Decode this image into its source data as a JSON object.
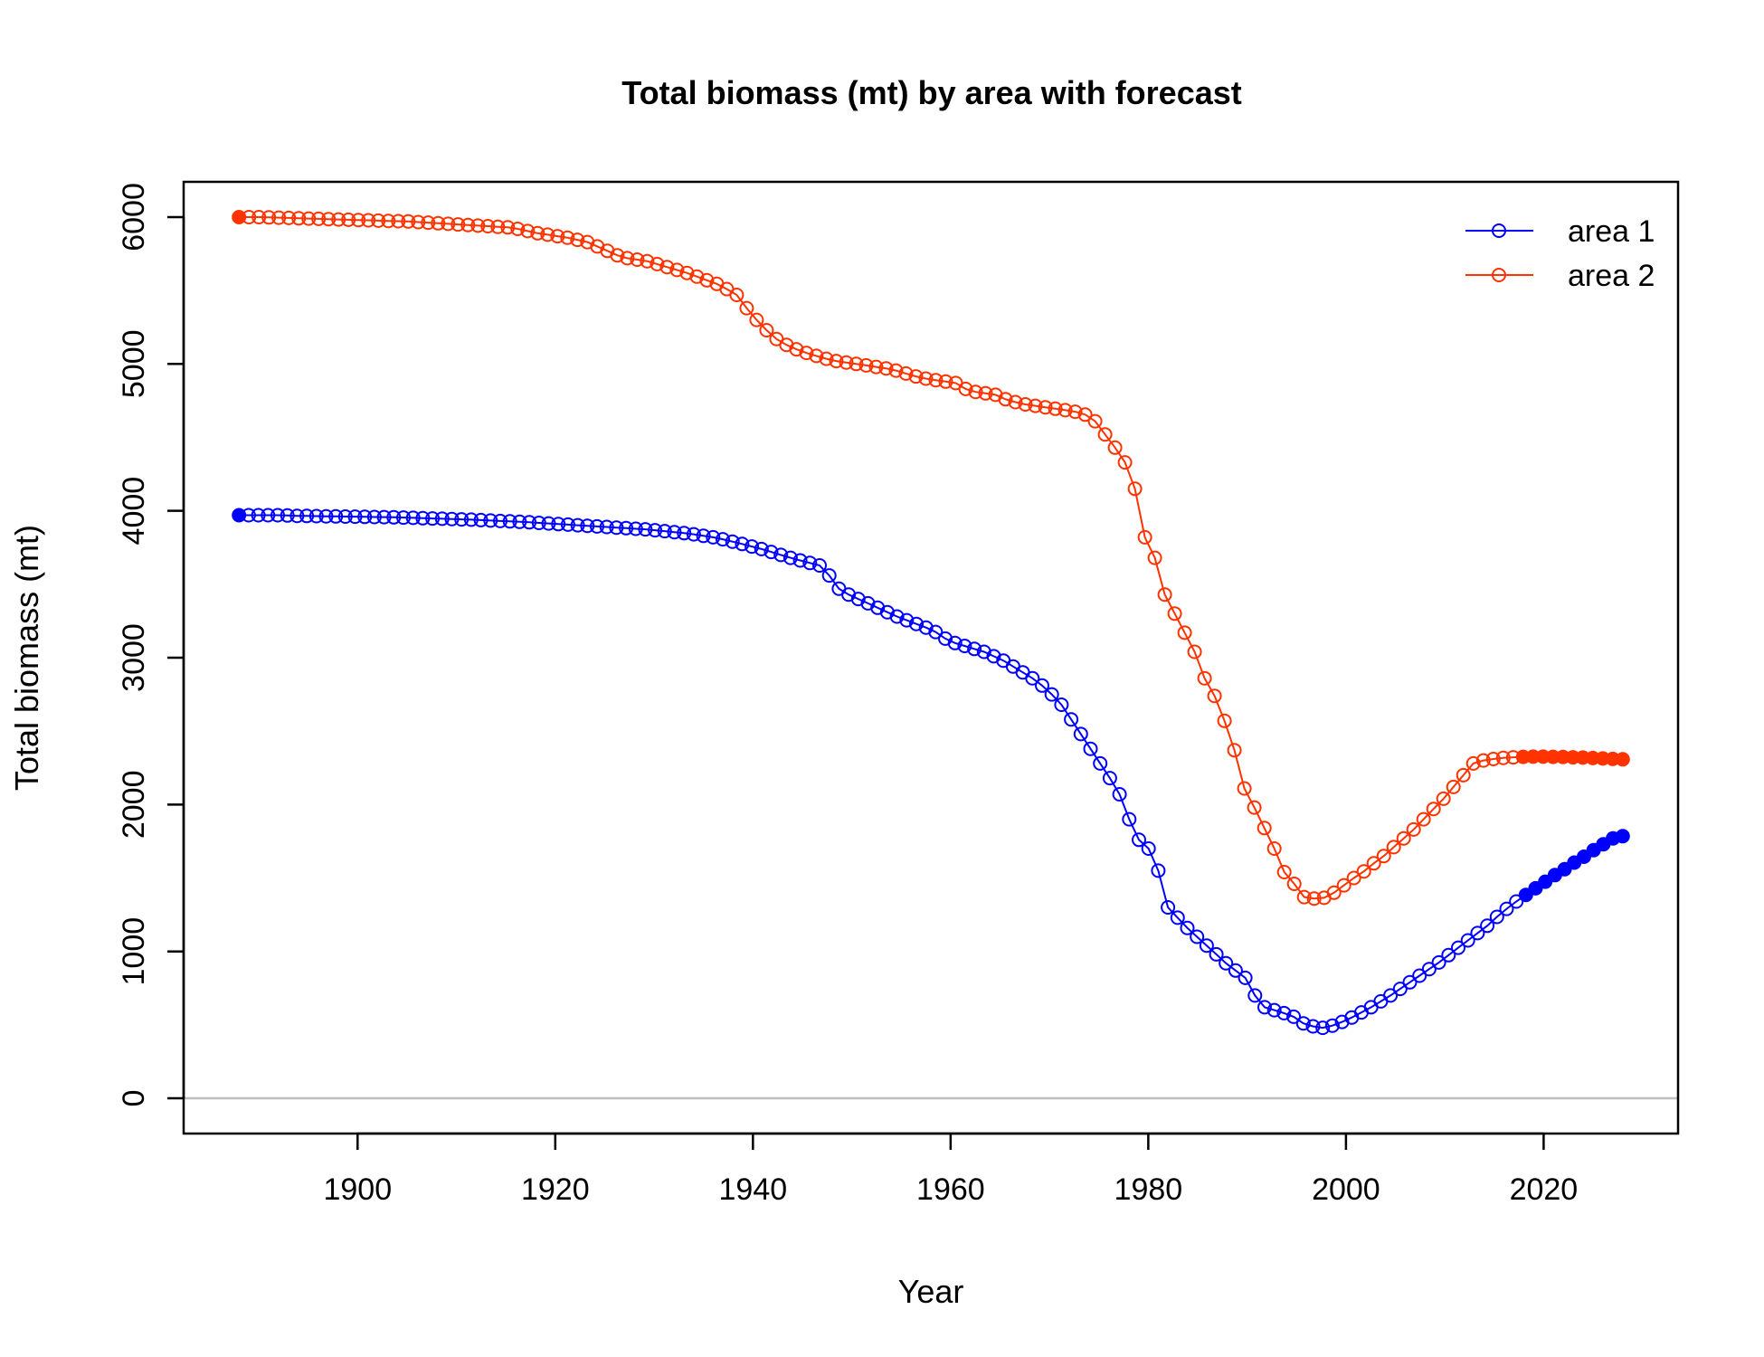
{
  "chart_data": {
    "type": "line",
    "title": "Total biomass (mt) by area with forecast",
    "xlabel": "Year",
    "ylabel": "Total biomass (mt)",
    "xlim": [
      1882.4,
      2033.6
    ],
    "ylim": [
      -240,
      6240
    ],
    "x_ticks": [
      1900,
      1920,
      1940,
      1960,
      1980,
      2000,
      2020
    ],
    "y_ticks": [
      0,
      1000,
      2000,
      3000,
      4000,
      5000,
      6000
    ],
    "reference_line": {
      "y": 0,
      "color": "#bebebe"
    },
    "legend": {
      "position": "top-right"
    },
    "x_start": 1888,
    "x_end": 2028,
    "forecast_start": 2018,
    "series": [
      {
        "name": "area 1",
        "color": "#0000ff",
        "values": [
          3970,
          3970,
          3970,
          3970,
          3970,
          3968,
          3966,
          3965,
          3964,
          3963,
          3962,
          3961,
          3960,
          3959,
          3958,
          3957,
          3956,
          3954,
          3952,
          3950,
          3948,
          3946,
          3944,
          3942,
          3940,
          3937,
          3934,
          3931,
          3928,
          3925,
          3922,
          3918,
          3914,
          3910,
          3906,
          3902,
          3898,
          3894,
          3890,
          3886,
          3882,
          3878,
          3874,
          3868,
          3862,
          3855,
          3848,
          3840,
          3830,
          3820,
          3806,
          3790,
          3774,
          3757,
          3740,
          3720,
          3700,
          3680,
          3662,
          3645,
          3628,
          3560,
          3470,
          3430,
          3400,
          3370,
          3340,
          3310,
          3280,
          3255,
          3230,
          3205,
          3175,
          3130,
          3100,
          3080,
          3060,
          3040,
          3010,
          2980,
          2940,
          2900,
          2860,
          2810,
          2750,
          2680,
          2580,
          2480,
          2380,
          2280,
          2180,
          2070,
          1900,
          1760,
          1700,
          1550,
          1300,
          1230,
          1160,
          1100,
          1040,
          980,
          920,
          870,
          820,
          700,
          620,
          600,
          580,
          555,
          510,
          490,
          480,
          495,
          520,
          550,
          585,
          620,
          660,
          700,
          745,
          790,
          835,
          880,
          925,
          975,
          1025,
          1075,
          1125,
          1175,
          1235,
          1290,
          1340,
          1385,
          1430,
          1475,
          1520,
          1560,
          1605,
          1645,
          1690,
          1730,
          1770,
          1785
        ]
      },
      {
        "name": "area 2",
        "color": "#ff3300",
        "values": [
          6000,
          6000,
          6000,
          5998,
          5996,
          5994,
          5992,
          5990,
          5988,
          5986,
          5984,
          5982,
          5980,
          5978,
          5976,
          5974,
          5972,
          5970,
          5966,
          5962,
          5958,
          5954,
          5950,
          5946,
          5942,
          5938,
          5934,
          5930,
          5920,
          5905,
          5890,
          5880,
          5870,
          5860,
          5845,
          5830,
          5800,
          5770,
          5740,
          5720,
          5710,
          5700,
          5680,
          5660,
          5640,
          5620,
          5595,
          5570,
          5545,
          5510,
          5470,
          5380,
          5300,
          5230,
          5170,
          5130,
          5100,
          5075,
          5055,
          5035,
          5020,
          5010,
          5000,
          4990,
          4980,
          4970,
          4955,
          4935,
          4915,
          4900,
          4890,
          4880,
          4870,
          4830,
          4810,
          4800,
          4790,
          4760,
          4740,
          4725,
          4715,
          4705,
          4695,
          4685,
          4675,
          4655,
          4610,
          4520,
          4430,
          4330,
          4150,
          3820,
          3680,
          3430,
          3300,
          3170,
          3040,
          2860,
          2740,
          2570,
          2370,
          2110,
          1980,
          1840,
          1700,
          1540,
          1460,
          1370,
          1360,
          1365,
          1400,
          1450,
          1500,
          1545,
          1600,
          1650,
          1710,
          1770,
          1830,
          1900,
          1970,
          2040,
          2120,
          2200,
          2280,
          2300,
          2310,
          2318,
          2322,
          2325,
          2326,
          2326,
          2325,
          2324,
          2322,
          2320,
          2317,
          2314,
          2311,
          2308
        ]
      }
    ]
  }
}
